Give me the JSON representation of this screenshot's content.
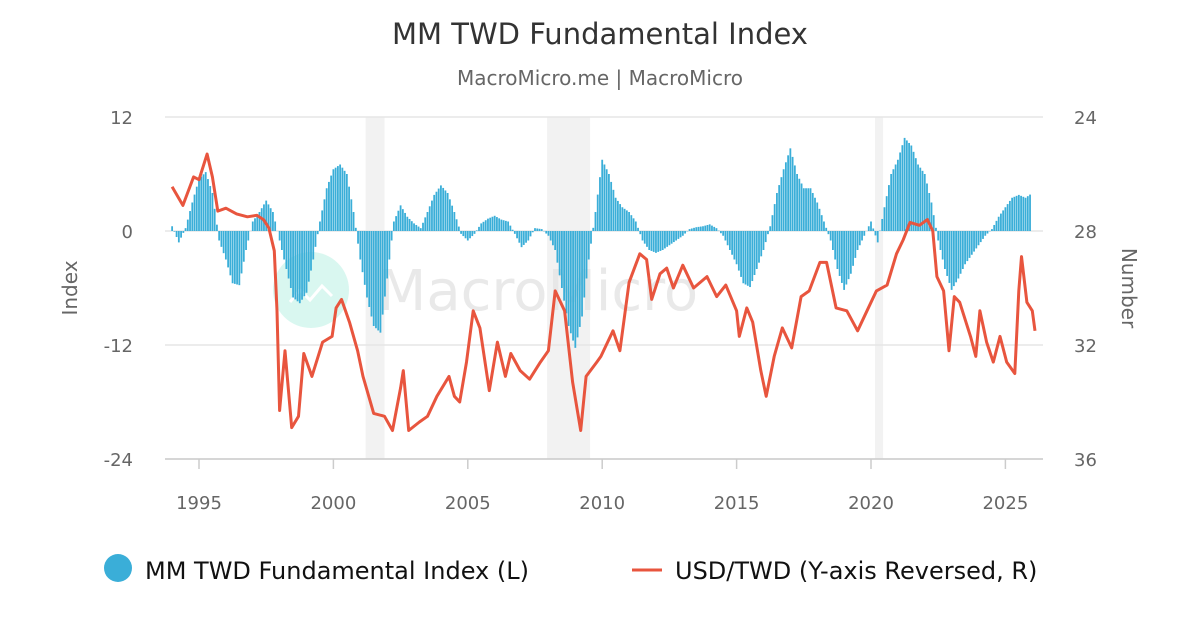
{
  "chart_data": {
    "type": "bar+line",
    "title": "MM TWD Fundamental Index",
    "subtitle": "MacroMicro.me | MacroMicro",
    "watermark": "MacroMicro",
    "x_ticks": [
      "1995",
      "2000",
      "2005",
      "2010",
      "2015",
      "2020",
      "2025"
    ],
    "y_left": {
      "label": "Index",
      "ticks": [
        "12",
        "0",
        "-12",
        "-24"
      ],
      "range": [
        -24,
        12
      ]
    },
    "y_right": {
      "label": "Number",
      "ticks": [
        "24",
        "28",
        "32",
        "36"
      ],
      "range": [
        24,
        36
      ],
      "reversed": true
    },
    "grid": true,
    "legend_placement": "bottom",
    "legend": [
      "MM TWD Fundamental Index (L)",
      "USD/TWD (Y-axis Reversed, R)"
    ],
    "colors": {
      "index": "#3aaed8",
      "usdtwd": "#e8553e",
      "shading": "#f2f2f2",
      "watermark_logo": "#d5f6ee"
    },
    "shaded_periods": [
      [
        2001.2,
        2001.9
      ],
      [
        2007.95,
        2009.55
      ],
      [
        2020.15,
        2020.45
      ]
    ],
    "series": [
      {
        "name": "MM TWD Fundamental Index (L)",
        "type": "bar",
        "axis": "left",
        "points": [
          [
            1994.0,
            0.5
          ],
          [
            1994.25,
            -1.2
          ],
          [
            1994.5,
            0.3
          ],
          [
            1994.75,
            3
          ],
          [
            1995.0,
            5.5
          ],
          [
            1995.25,
            6.2
          ],
          [
            1995.5,
            4
          ],
          [
            1995.75,
            -1
          ],
          [
            1996.0,
            -3
          ],
          [
            1996.25,
            -5.5
          ],
          [
            1996.5,
            -5.7
          ],
          [
            1996.75,
            -2
          ],
          [
            1997.0,
            1
          ],
          [
            1997.25,
            2
          ],
          [
            1997.5,
            3.2
          ],
          [
            1997.75,
            2
          ],
          [
            1998.0,
            -1
          ],
          [
            1998.25,
            -4
          ],
          [
            1998.5,
            -7
          ],
          [
            1998.75,
            -7.6
          ],
          [
            1999.0,
            -6.5
          ],
          [
            1999.25,
            -3
          ],
          [
            1999.5,
            1
          ],
          [
            1999.75,
            4.5
          ],
          [
            2000.0,
            6.5
          ],
          [
            2000.25,
            7
          ],
          [
            2000.5,
            6
          ],
          [
            2000.75,
            2
          ],
          [
            2001.0,
            -3
          ],
          [
            2001.25,
            -7
          ],
          [
            2001.5,
            -10
          ],
          [
            2001.75,
            -10.7
          ],
          [
            2002.0,
            -5
          ],
          [
            2002.25,
            1
          ],
          [
            2002.5,
            2.7
          ],
          [
            2002.75,
            1.5
          ],
          [
            2003.0,
            0.8
          ],
          [
            2003.25,
            0.3
          ],
          [
            2003.5,
            2
          ],
          [
            2003.75,
            3.8
          ],
          [
            2004.0,
            4.8
          ],
          [
            2004.25,
            4
          ],
          [
            2004.5,
            2
          ],
          [
            2004.75,
            -0.3
          ],
          [
            2005.0,
            -1
          ],
          [
            2005.25,
            -0.3
          ],
          [
            2005.5,
            0.8
          ],
          [
            2005.75,
            1.3
          ],
          [
            2006.0,
            1.6
          ],
          [
            2006.25,
            1.2
          ],
          [
            2006.5,
            1
          ],
          [
            2006.75,
            -0.3
          ],
          [
            2007.0,
            -1.7
          ],
          [
            2007.25,
            -1
          ],
          [
            2007.5,
            0.3
          ],
          [
            2007.75,
            0.2
          ],
          [
            2008.0,
            -0.5
          ],
          [
            2008.25,
            -2
          ],
          [
            2008.5,
            -6
          ],
          [
            2008.75,
            -10
          ],
          [
            2009.0,
            -12.3
          ],
          [
            2009.25,
            -9
          ],
          [
            2009.5,
            -3
          ],
          [
            2009.75,
            2
          ],
          [
            2010.0,
            7.5
          ],
          [
            2010.25,
            6
          ],
          [
            2010.5,
            3.5
          ],
          [
            2010.75,
            2.5
          ],
          [
            2011.0,
            2
          ],
          [
            2011.25,
            1
          ],
          [
            2011.5,
            -1
          ],
          [
            2011.75,
            -2
          ],
          [
            2012.0,
            -2.3
          ],
          [
            2012.25,
            -2
          ],
          [
            2012.5,
            -1.5
          ],
          [
            2012.75,
            -1
          ],
          [
            2013.0,
            -0.5
          ],
          [
            2013.25,
            0.2
          ],
          [
            2013.5,
            0.4
          ],
          [
            2013.75,
            0.5
          ],
          [
            2014.0,
            0.7
          ],
          [
            2014.25,
            0.3
          ],
          [
            2014.5,
            -0.5
          ],
          [
            2014.75,
            -2
          ],
          [
            2015.0,
            -3.5
          ],
          [
            2015.25,
            -5.5
          ],
          [
            2015.5,
            -5.9
          ],
          [
            2015.75,
            -4
          ],
          [
            2016.0,
            -2
          ],
          [
            2016.25,
            0.5
          ],
          [
            2016.5,
            4
          ],
          [
            2016.75,
            6.5
          ],
          [
            2017.0,
            8.7
          ],
          [
            2017.25,
            6
          ],
          [
            2017.5,
            4.5
          ],
          [
            2017.75,
            4.5
          ],
          [
            2018.0,
            3
          ],
          [
            2018.25,
            1
          ],
          [
            2018.5,
            -1
          ],
          [
            2018.75,
            -4
          ],
          [
            2019.0,
            -6.2
          ],
          [
            2019.25,
            -4.5
          ],
          [
            2019.5,
            -2
          ],
          [
            2019.75,
            -0.5
          ],
          [
            2020.0,
            1
          ],
          [
            2020.25,
            -1.2
          ],
          [
            2020.5,
            2.5
          ],
          [
            2020.75,
            6
          ],
          [
            2021.0,
            7.5
          ],
          [
            2021.25,
            9.8
          ],
          [
            2021.5,
            9
          ],
          [
            2021.75,
            7
          ],
          [
            2022.0,
            6
          ],
          [
            2022.25,
            3
          ],
          [
            2022.5,
            -1
          ],
          [
            2022.75,
            -4
          ],
          [
            2023.0,
            -6.2
          ],
          [
            2023.25,
            -5
          ],
          [
            2023.5,
            -3.5
          ],
          [
            2023.75,
            -2.5
          ],
          [
            2024.0,
            -1.5
          ],
          [
            2024.25,
            -0.5
          ],
          [
            2024.5,
            0.2
          ],
          [
            2024.75,
            1.5
          ],
          [
            2025.0,
            2.5
          ],
          [
            2025.25,
            3.5
          ],
          [
            2025.5,
            3.8
          ],
          [
            2025.75,
            3.5
          ],
          [
            2026.0,
            4.0
          ]
        ]
      },
      {
        "name": "USD/TWD (Y-axis Reversed, R)",
        "type": "line",
        "axis": "right",
        "points": [
          [
            1994.0,
            26.45
          ],
          [
            1994.4,
            27.1
          ],
          [
            1994.8,
            26.1
          ],
          [
            1995.0,
            26.2
          ],
          [
            1995.3,
            25.3
          ],
          [
            1995.5,
            26.1
          ],
          [
            1995.7,
            27.3
          ],
          [
            1996.0,
            27.2
          ],
          [
            1996.4,
            27.4
          ],
          [
            1996.8,
            27.5
          ],
          [
            1997.15,
            27.45
          ],
          [
            1997.4,
            27.6
          ],
          [
            1997.6,
            27.9
          ],
          [
            1997.8,
            28.7
          ],
          [
            1997.9,
            30.8
          ],
          [
            1998.0,
            34.3
          ],
          [
            1998.2,
            32.2
          ],
          [
            1998.45,
            34.9
          ],
          [
            1998.7,
            34.5
          ],
          [
            1998.9,
            32.3
          ],
          [
            1999.2,
            33.1
          ],
          [
            1999.6,
            31.9
          ],
          [
            1999.95,
            31.7
          ],
          [
            2000.1,
            30.7
          ],
          [
            2000.3,
            30.4
          ],
          [
            2000.6,
            31.2
          ],
          [
            2000.9,
            32.2
          ],
          [
            2001.1,
            33.1
          ],
          [
            2001.5,
            34.4
          ],
          [
            2001.9,
            34.5
          ],
          [
            2002.2,
            35.0
          ],
          [
            2002.5,
            33.5
          ],
          [
            2002.6,
            32.9
          ],
          [
            2002.8,
            35.0
          ],
          [
            2003.2,
            34.7
          ],
          [
            2003.5,
            34.5
          ],
          [
            2003.85,
            33.8
          ],
          [
            2004.3,
            33.1
          ],
          [
            2004.5,
            33.8
          ],
          [
            2004.7,
            34.0
          ],
          [
            2004.95,
            32.6
          ],
          [
            2005.2,
            30.8
          ],
          [
            2005.45,
            31.4
          ],
          [
            2005.8,
            33.6
          ],
          [
            2006.1,
            31.9
          ],
          [
            2006.4,
            33.1
          ],
          [
            2006.6,
            32.3
          ],
          [
            2006.95,
            32.9
          ],
          [
            2007.3,
            33.2
          ],
          [
            2007.7,
            32.6
          ],
          [
            2008.0,
            32.2
          ],
          [
            2008.25,
            30.1
          ],
          [
            2008.6,
            30.8
          ],
          [
            2008.9,
            33.3
          ],
          [
            2009.2,
            35.0
          ],
          [
            2009.4,
            33.1
          ],
          [
            2009.8,
            32.6
          ],
          [
            2009.95,
            32.4
          ],
          [
            2010.4,
            31.5
          ],
          [
            2010.66,
            32.2
          ],
          [
            2011.0,
            29.8
          ],
          [
            2011.4,
            28.8
          ],
          [
            2011.65,
            29.0
          ],
          [
            2011.84,
            30.4
          ],
          [
            2012.15,
            29.5
          ],
          [
            2012.4,
            29.3
          ],
          [
            2012.65,
            30.0
          ],
          [
            2013.0,
            29.2
          ],
          [
            2013.4,
            30.0
          ],
          [
            2013.9,
            29.6
          ],
          [
            2014.26,
            30.3
          ],
          [
            2014.6,
            29.9
          ],
          [
            2015.0,
            30.8
          ],
          [
            2015.1,
            31.7
          ],
          [
            2015.38,
            30.7
          ],
          [
            2015.6,
            31.2
          ],
          [
            2015.9,
            32.9
          ],
          [
            2016.1,
            33.8
          ],
          [
            2016.4,
            32.4
          ],
          [
            2016.7,
            31.4
          ],
          [
            2017.05,
            32.1
          ],
          [
            2017.4,
            30.3
          ],
          [
            2017.7,
            30.1
          ],
          [
            2018.1,
            29.1
          ],
          [
            2018.35,
            29.1
          ],
          [
            2018.7,
            30.7
          ],
          [
            2019.1,
            30.8
          ],
          [
            2019.5,
            31.5
          ],
          [
            2019.85,
            30.8
          ],
          [
            2020.2,
            30.1
          ],
          [
            2020.6,
            29.9
          ],
          [
            2020.95,
            28.8
          ],
          [
            2021.2,
            28.3
          ],
          [
            2021.45,
            27.7
          ],
          [
            2021.8,
            27.8
          ],
          [
            2022.1,
            27.6
          ],
          [
            2022.3,
            28.0
          ],
          [
            2022.45,
            29.6
          ],
          [
            2022.7,
            30.1
          ],
          [
            2022.9,
            32.2
          ],
          [
            2023.1,
            30.3
          ],
          [
            2023.3,
            30.5
          ],
          [
            2023.7,
            31.7
          ],
          [
            2023.9,
            32.4
          ],
          [
            2024.05,
            30.8
          ],
          [
            2024.3,
            31.9
          ],
          [
            2024.55,
            32.6
          ],
          [
            2024.8,
            31.7
          ],
          [
            2025.05,
            32.6
          ],
          [
            2025.35,
            33.0
          ],
          [
            2025.5,
            30.1
          ],
          [
            2025.6,
            28.9
          ],
          [
            2025.8,
            30.5
          ],
          [
            2026.0,
            30.8
          ],
          [
            2026.1,
            31.5
          ]
        ]
      }
    ]
  }
}
